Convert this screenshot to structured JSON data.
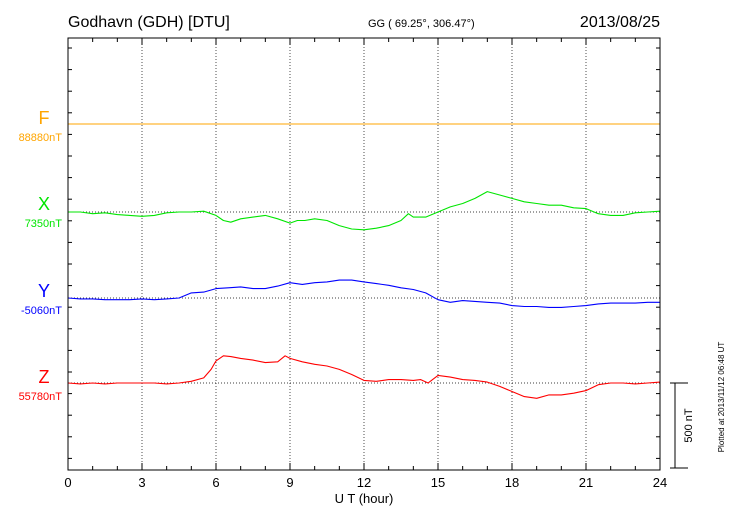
{
  "header": {
    "station": "Godhavn (GDH)  [DTU]",
    "coords": "GG ( 69.25°, 306.47°)",
    "date": "2013/08/25"
  },
  "side_note": "Plotted at 2013/11/12 06:48 UT",
  "scale_bar": {
    "label": "500 nT",
    "value_nT": 500
  },
  "chart_data": {
    "type": "line",
    "xlabel": "U T (hour)",
    "xlim": [
      0,
      24
    ],
    "xticks": [
      0,
      3,
      6,
      9,
      12,
      15,
      18,
      21,
      24
    ],
    "grid": true,
    "units": "nT",
    "series": [
      {
        "name": "F",
        "baseline_label": "88880nT",
        "baseline": 88880,
        "color": "#ffa500",
        "x": [
          0,
          24
        ],
        "y": [
          88880,
          88880
        ]
      },
      {
        "name": "X",
        "baseline_label": "7350nT",
        "baseline": 7350,
        "color": "#00e600",
        "x": [
          0,
          0.5,
          1,
          1.5,
          2,
          2.5,
          3,
          3.5,
          4,
          4.5,
          5,
          5.5,
          6,
          6.3,
          6.6,
          7,
          7.5,
          8,
          8.5,
          9,
          9.3,
          9.6,
          10,
          10.5,
          11,
          11.5,
          12,
          12.5,
          13,
          13.5,
          13.8,
          14,
          14.5,
          15,
          15.5,
          16,
          16.5,
          17,
          17.5,
          18,
          18.5,
          19,
          19.5,
          20,
          20.5,
          21,
          21.5,
          22,
          22.5,
          23,
          23.5,
          24
        ],
        "y": [
          7350,
          7350,
          7340,
          7345,
          7335,
          7330,
          7325,
          7330,
          7345,
          7350,
          7350,
          7355,
          7330,
          7300,
          7290,
          7310,
          7320,
          7330,
          7310,
          7285,
          7300,
          7300,
          7310,
          7300,
          7270,
          7250,
          7245,
          7255,
          7270,
          7300,
          7340,
          7320,
          7320,
          7350,
          7380,
          7400,
          7430,
          7470,
          7450,
          7430,
          7410,
          7400,
          7390,
          7390,
          7375,
          7370,
          7340,
          7330,
          7330,
          7345,
          7350,
          7355
        ]
      },
      {
        "name": "Y",
        "baseline_label": "-5060nT",
        "baseline": -5060,
        "color": "#0000ff",
        "x": [
          0,
          0.5,
          1,
          1.5,
          2,
          2.5,
          3,
          3.5,
          4,
          4.5,
          5,
          5.5,
          6,
          6.5,
          7,
          7.5,
          8,
          8.5,
          9,
          9.5,
          10,
          10.5,
          11,
          11.5,
          12,
          12.5,
          13,
          13.5,
          14,
          14.5,
          15,
          15.5,
          16,
          16.5,
          17,
          17.5,
          18,
          18.5,
          19,
          19.5,
          20,
          20.5,
          21,
          21.5,
          22,
          22.5,
          23,
          23.5,
          24
        ],
        "y": [
          -5060,
          -5065,
          -5065,
          -5070,
          -5070,
          -5070,
          -5065,
          -5070,
          -5065,
          -5060,
          -5030,
          -5025,
          -5005,
          -5000,
          -4995,
          -5005,
          -5005,
          -4990,
          -4970,
          -4980,
          -4970,
          -4965,
          -4955,
          -4955,
          -4965,
          -4975,
          -4985,
          -5000,
          -5010,
          -5030,
          -5070,
          -5085,
          -5075,
          -5080,
          -5085,
          -5090,
          -5105,
          -5110,
          -5110,
          -5115,
          -5115,
          -5110,
          -5105,
          -5095,
          -5090,
          -5090,
          -5090,
          -5085,
          -5085
        ]
      },
      {
        "name": "Z",
        "baseline_label": "55780nT",
        "baseline": 55780,
        "color": "#ff0000",
        "x": [
          0,
          0.5,
          1,
          1.5,
          2,
          2.5,
          3,
          3.5,
          4,
          4.5,
          5,
          5.5,
          5.8,
          6,
          6.3,
          6.6,
          7,
          7.5,
          8,
          8.5,
          8.8,
          9,
          9.5,
          10,
          10.5,
          11,
          11.5,
          12,
          12.5,
          13,
          13.5,
          14,
          14.3,
          14.6,
          15,
          15.5,
          16,
          16.5,
          17,
          17.5,
          18,
          18.5,
          19,
          19.5,
          20,
          20.5,
          21,
          21.5,
          22,
          22.5,
          23,
          23.5,
          24
        ],
        "y": [
          55780,
          55775,
          55780,
          55775,
          55780,
          55780,
          55780,
          55780,
          55775,
          55780,
          55790,
          55810,
          55860,
          55910,
          55940,
          55935,
          55925,
          55915,
          55900,
          55905,
          55940,
          55925,
          55905,
          55890,
          55880,
          55860,
          55830,
          55795,
          55790,
          55800,
          55800,
          55795,
          55800,
          55780,
          55825,
          55815,
          55800,
          55795,
          55785,
          55760,
          55730,
          55700,
          55690,
          55710,
          55710,
          55720,
          55735,
          55770,
          55780,
          55780,
          55775,
          55780,
          55785
        ]
      }
    ]
  }
}
